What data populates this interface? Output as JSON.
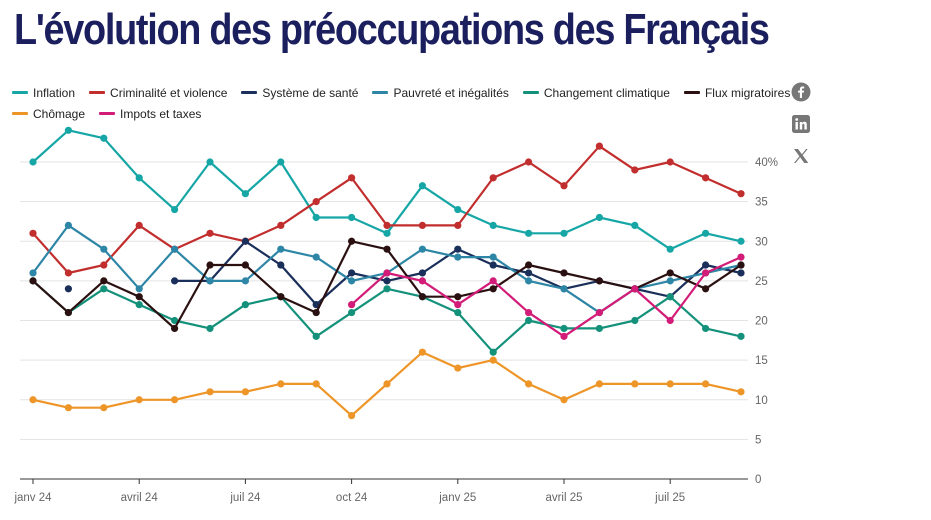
{
  "header": {
    "title": "L'évolution des préoccupations des Français"
  },
  "social": [
    {
      "name": "facebook-icon"
    },
    {
      "name": "linkedin-icon"
    },
    {
      "name": "x-icon"
    }
  ],
  "chart_data": {
    "type": "line",
    "title": "L'évolution des préoccupations des Français",
    "xlabel": "",
    "ylabel": "",
    "ylim": [
      0,
      40
    ],
    "x_tick_labels": [
      "janv 24",
      "avril 24",
      "juil 24",
      "oct 24",
      "janv 25",
      "avril 25",
      "juil 25"
    ],
    "y_tick_labels": [
      "40%",
      "35",
      "30",
      "25",
      "20",
      "15",
      "10",
      "5",
      "0"
    ],
    "grid": true,
    "legend_position": "top",
    "series": [
      {
        "name": "Inflation",
        "color": "#16a6a6",
        "values": [
          40,
          44,
          43,
          38,
          34,
          40,
          36,
          40,
          33,
          33,
          31,
          37,
          34,
          32,
          31,
          31,
          33,
          32,
          29,
          31,
          30
        ]
      },
      {
        "name": "Criminalité et violence",
        "color": "#c22e2e",
        "values": [
          31,
          26,
          27,
          32,
          29,
          31,
          30,
          32,
          35,
          38,
          32,
          32,
          32,
          38,
          40,
          37,
          42,
          39,
          40,
          38,
          36
        ]
      },
      {
        "name": "Système de santé",
        "color": "#1a2f5a",
        "values": [
          null,
          24,
          null,
          null,
          25,
          25,
          30,
          27,
          22,
          26,
          25,
          26,
          29,
          27,
          26,
          24,
          25,
          24,
          23,
          27,
          26
        ]
      },
      {
        "name": "Pauvreté et inégalités",
        "color": "#2e86a6",
        "values": [
          26,
          32,
          29,
          24,
          29,
          25,
          25,
          29,
          28,
          25,
          26,
          29,
          28,
          28,
          25,
          24,
          21,
          24,
          25,
          26,
          27
        ]
      },
      {
        "name": "Changement climatique",
        "color": "#14917a",
        "values": [
          25,
          21,
          24,
          22,
          20,
          19,
          22,
          23,
          18,
          21,
          24,
          23,
          21,
          16,
          20,
          19,
          19,
          20,
          23,
          19,
          18
        ]
      },
      {
        "name": "Flux migratoires",
        "color": "#2a1010",
        "values": [
          25,
          21,
          25,
          23,
          19,
          27,
          27,
          23,
          21,
          30,
          29,
          23,
          23,
          24,
          27,
          26,
          25,
          24,
          26,
          24,
          27
        ]
      },
      {
        "name": "Chômage",
        "color": "#ee9528",
        "values": [
          10,
          9,
          9,
          10,
          10,
          11,
          11,
          12,
          12,
          8,
          12,
          16,
          14,
          15,
          12,
          10,
          12,
          12,
          12,
          12,
          11
        ]
      },
      {
        "name": "Impots et taxes",
        "color": "#d21c78",
        "values": [
          null,
          null,
          null,
          null,
          null,
          null,
          null,
          null,
          null,
          22,
          26,
          25,
          22,
          25,
          21,
          18,
          21,
          24,
          20,
          26,
          28
        ]
      }
    ]
  }
}
